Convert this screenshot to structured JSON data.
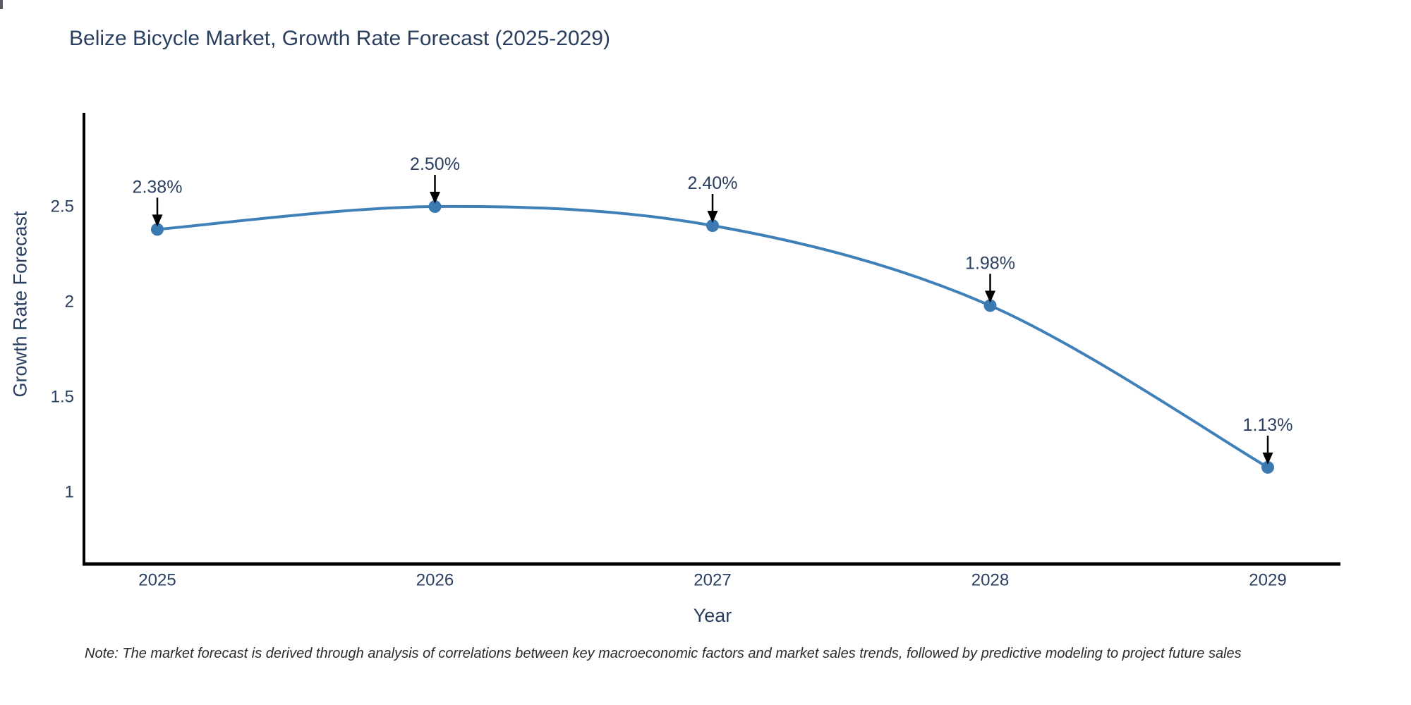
{
  "header": {
    "title": "Belize Bicycle Market, Growth Rate Forecast (2025-2029)"
  },
  "footnote": {
    "text": "Note: The market forecast is derived through analysis of correlations between key macroeconomic factors and market sales trends, followed by predictive modeling to project future sales"
  },
  "colors": {
    "line": "#4080b8",
    "marker": "#3b79b3",
    "axis": "#000000",
    "text": "#2a3f5f",
    "annotation_arrow": "#000000",
    "background": "#ffffff"
  },
  "chart_data": {
    "type": "line",
    "title": "Belize Bicycle Market, Growth Rate Forecast (2025-2029)",
    "x": [
      2025,
      2026,
      2027,
      2028,
      2029
    ],
    "y": [
      2.38,
      2.5,
      2.4,
      1.98,
      1.13
    ],
    "point_labels": [
      "2.38%",
      "2.50%",
      "2.40%",
      "1.98%",
      "1.13%"
    ],
    "xlabel": "Year",
    "ylabel": "Growth Rate Forecast",
    "xtick_labels": [
      "2025",
      "2026",
      "2027",
      "2028",
      "2029"
    ],
    "yticks": [
      2.5,
      2.0,
      1.5,
      1.0
    ],
    "ytick_labels": [
      "2.5",
      "2",
      "1.5",
      "1"
    ],
    "ylim": [
      0.62,
      2.99
    ],
    "xlim_years": [
      2025,
      2029
    ],
    "grid": false,
    "legend": false,
    "line_shape": "spline",
    "markers": true,
    "annotations_have_arrows": true
  }
}
